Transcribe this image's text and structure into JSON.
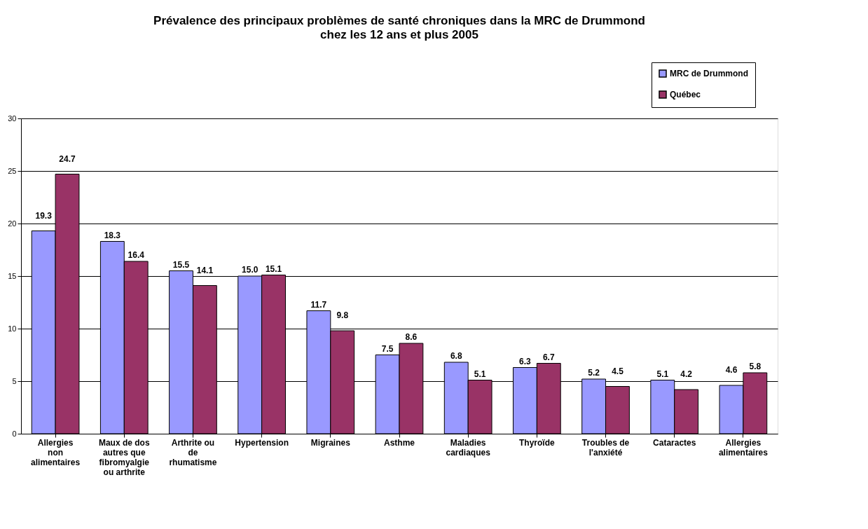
{
  "chart_data": {
    "type": "bar",
    "title": "Prévalence des principaux problèmes de santé chroniques dans la MRC de Drummond",
    "subtitle": "chez les 12 ans et plus 2005",
    "categories": [
      "Allergies non alimentaires",
      "Maux de dos autres que fibromyalgie ou arthrite",
      "Arthrite ou de rhumatisme",
      "Hypertension",
      "Migraines",
      "Asthme",
      "Maladies cardiaques",
      "Thyroïde",
      "Troubles de l'anxiété",
      "Cataractes",
      "Allergies alimentaires"
    ],
    "series": [
      {
        "name": "MRC de Drummond",
        "color": "#9999ff",
        "values": [
          19.3,
          18.3,
          15.5,
          15.0,
          11.7,
          7.5,
          6.8,
          6.3,
          5.2,
          5.1,
          4.6
        ],
        "value_labels": [
          "19.3",
          "18.3",
          "15.5",
          "15.0",
          "11.7",
          "7.5",
          "6.8",
          "6.3",
          "5.2",
          "5.1",
          "4.6"
        ]
      },
      {
        "name": "Québec",
        "color": "#993366",
        "values": [
          24.7,
          16.4,
          14.1,
          15.1,
          9.8,
          8.6,
          5.1,
          6.7,
          4.5,
          4.2,
          5.8
        ],
        "value_labels": [
          "24.7",
          "16.4",
          "14.1",
          "15.1",
          "9.8",
          "8.6",
          "5.1",
          "6.7",
          "4.5",
          "4.2",
          "5.8"
        ]
      }
    ],
    "ylim": [
      0,
      30
    ],
    "yticks": [
      0,
      5,
      10,
      15,
      20,
      25,
      30
    ],
    "grid": "y",
    "legend": "top right"
  }
}
